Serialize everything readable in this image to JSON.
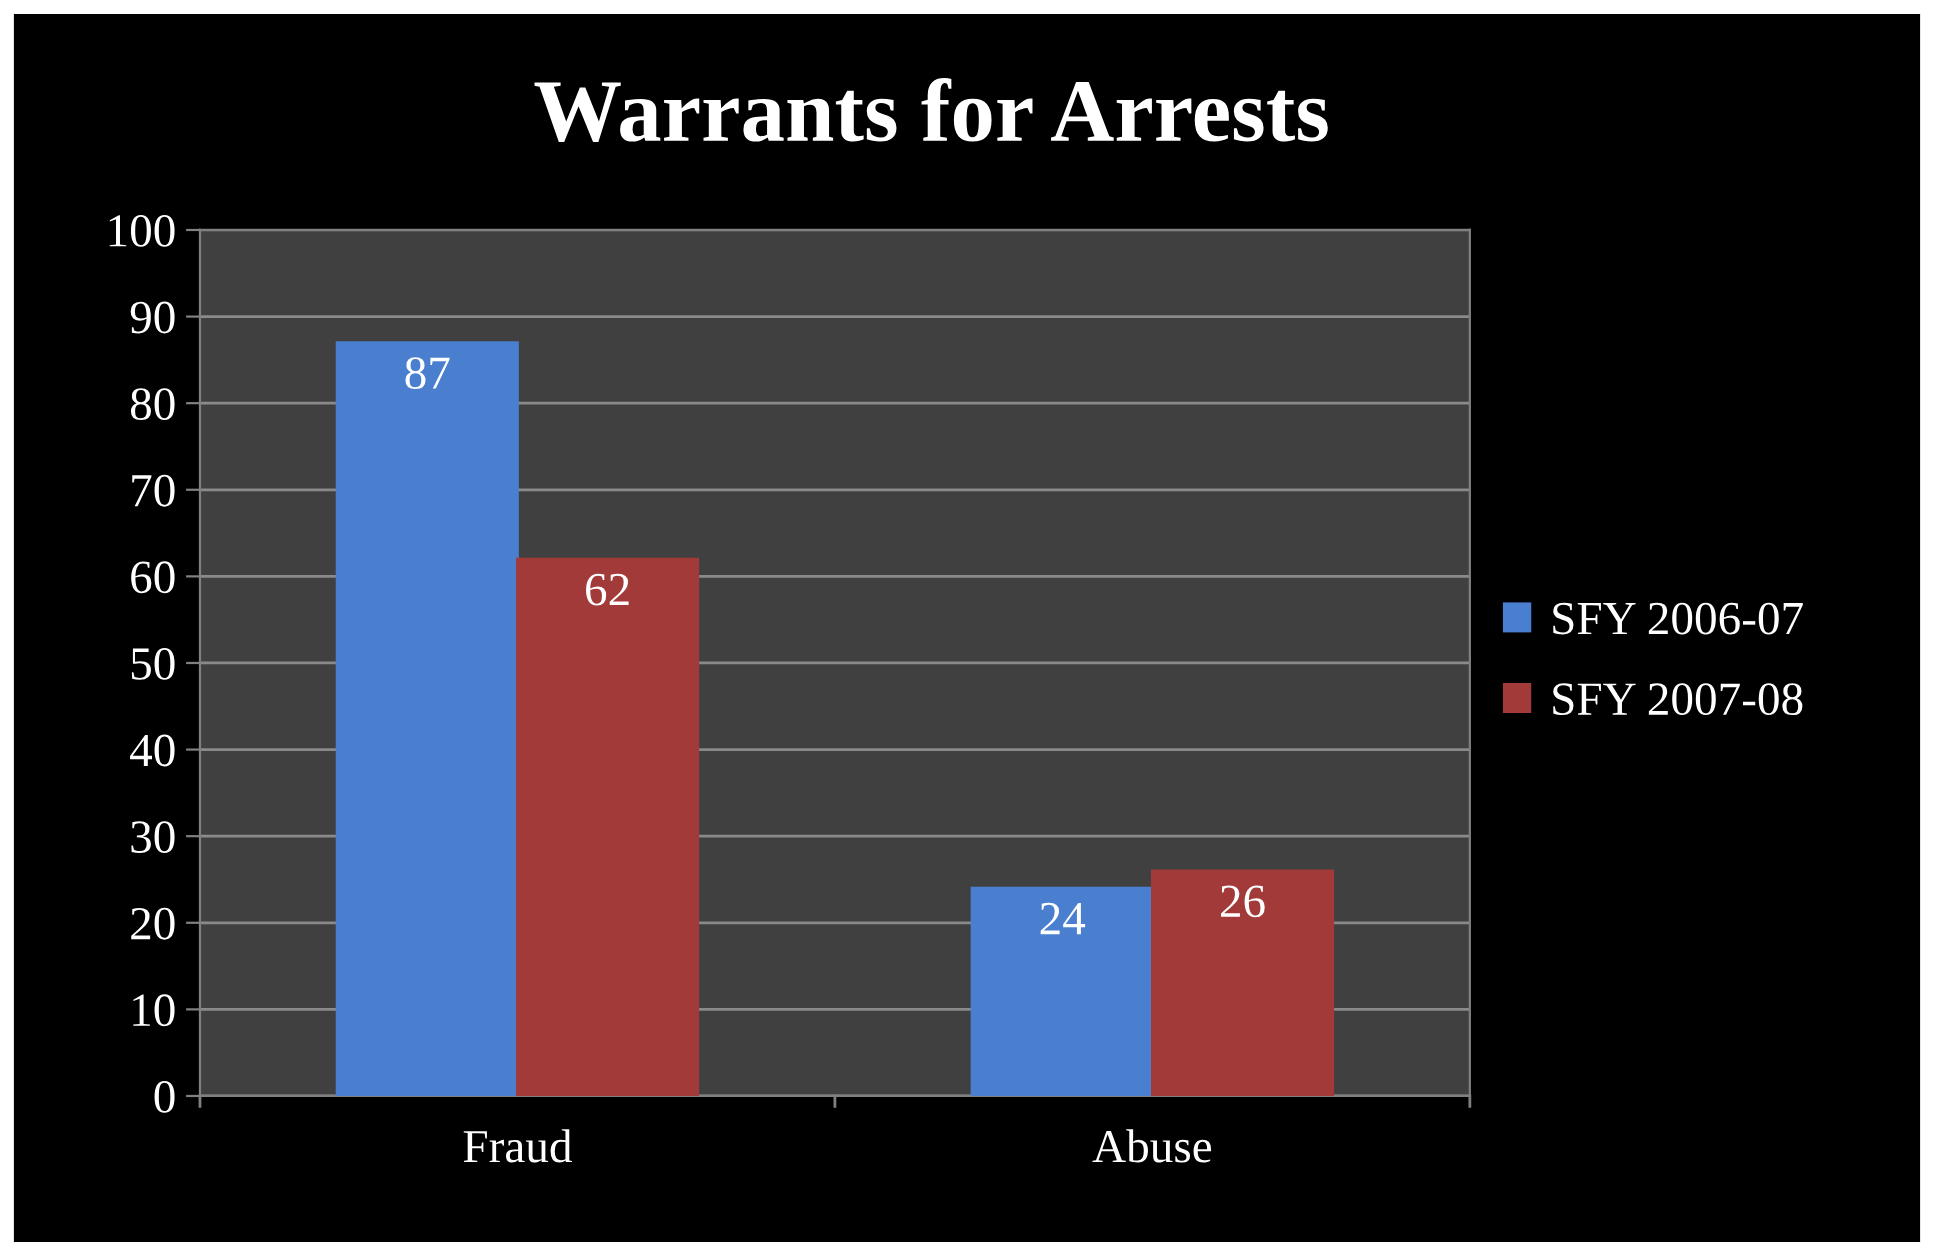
{
  "chart_data": {
    "type": "bar",
    "title": "Warrants for Arrests",
    "categories": [
      "Fraud",
      "Abuse"
    ],
    "series": [
      {
        "name": "SFY 2006-07",
        "color": "#4a7fd0",
        "values": [
          87,
          24
        ]
      },
      {
        "name": "SFY 2007-08",
        "color": "#a33a3a",
        "values": [
          62,
          26
        ]
      }
    ],
    "ylim": [
      0,
      100
    ],
    "yticks": [
      0,
      10,
      20,
      30,
      40,
      50,
      60,
      70,
      80,
      90,
      100
    ],
    "grid": "y",
    "legend": "right",
    "data_labels": true
  }
}
